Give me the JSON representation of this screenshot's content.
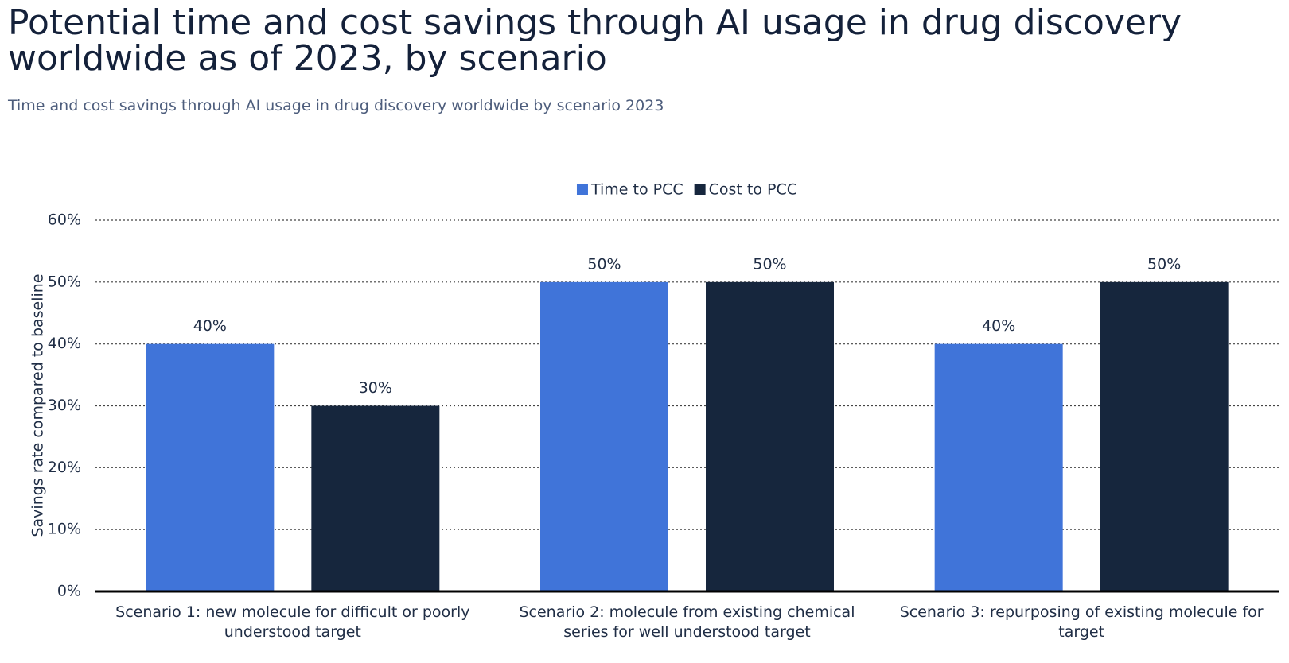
{
  "chart_data": {
    "type": "bar",
    "title": "Potential time and cost savings through AI usage in drug discovery worldwide as of 2023, by scenario",
    "subtitle": "Time and cost savings through AI usage in drug discovery worldwide by scenario 2023",
    "y_label": "Savings rate compared to baseline",
    "categories": [
      "Scenario 1: new molecule for difficult or poorly understood target",
      "Scenario 2: molecule from existing chemical series for well understood target",
      "Scenario 3: repurposing of existing molecule for target"
    ],
    "series": [
      {
        "name": "Time to PCC",
        "color": "#4074d9",
        "values": [
          40,
          50,
          40
        ],
        "value_labels": [
          "40%",
          "50%",
          "40%"
        ]
      },
      {
        "name": "Cost to PCC",
        "color": "#16263d",
        "values": [
          30,
          50,
          50
        ],
        "value_labels": [
          "30%",
          "50%",
          "50%"
        ]
      }
    ],
    "ylim": [
      0,
      60
    ],
    "yticks": [
      {
        "value": 0,
        "label": "0%"
      },
      {
        "value": 10,
        "label": "10%"
      },
      {
        "value": 20,
        "label": "20%"
      },
      {
        "value": 30,
        "label": "30%"
      },
      {
        "value": 40,
        "label": "40%"
      },
      {
        "value": 50,
        "label": "50%"
      },
      {
        "value": 60,
        "label": "60%"
      }
    ],
    "grid": true,
    "legend": "top"
  }
}
